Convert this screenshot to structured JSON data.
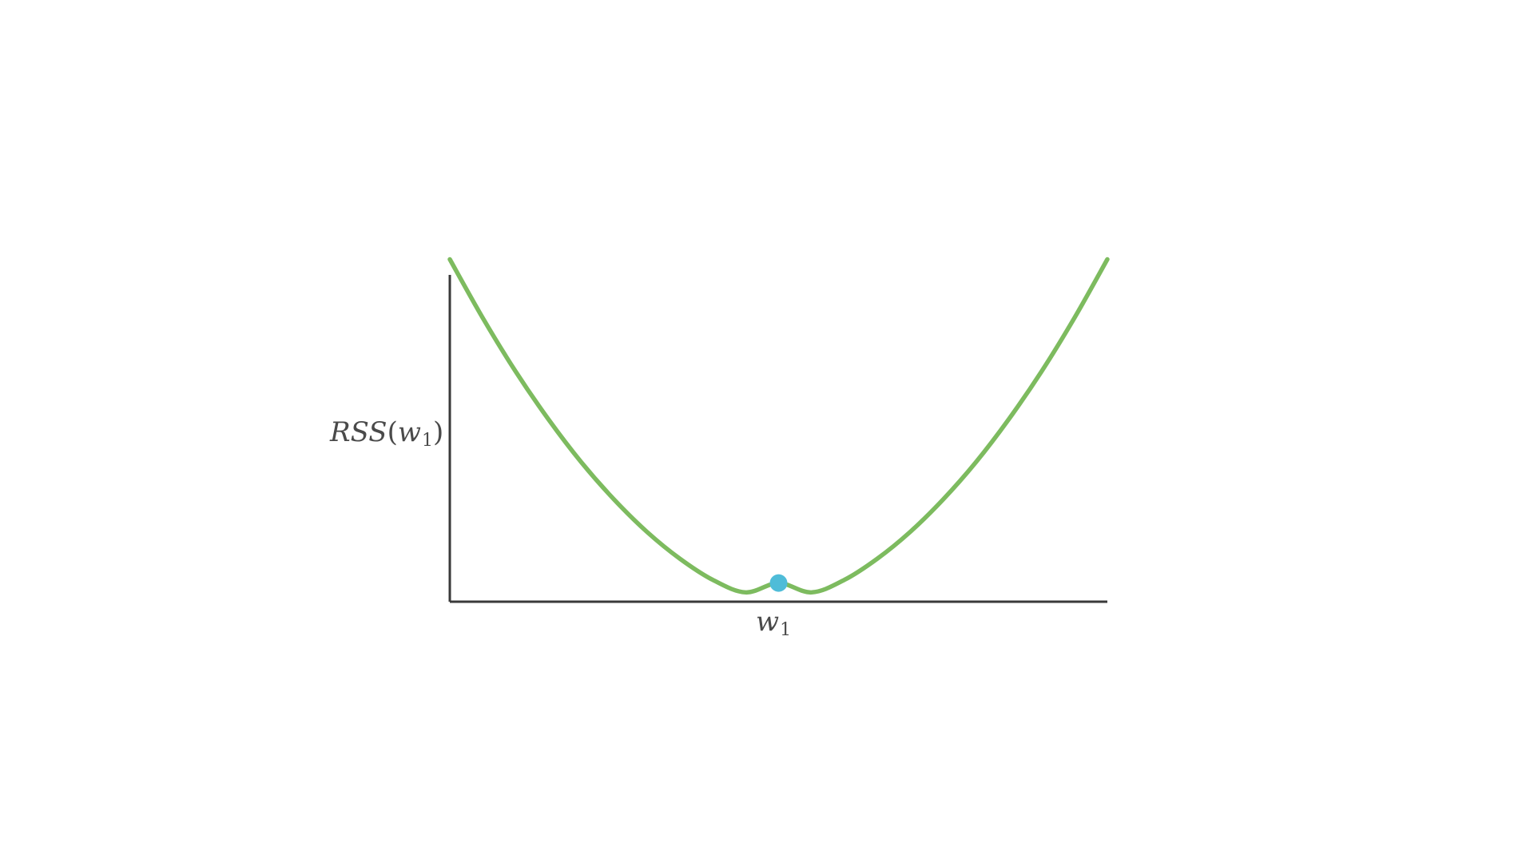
{
  "chart_data": {
    "type": "line",
    "title": "",
    "xlabel": {
      "var": "w",
      "sub": "1"
    },
    "ylabel": {
      "func": "RSS",
      "var": "w",
      "sub": "1"
    },
    "xlim": [
      -1,
      1
    ],
    "ylim": [
      0,
      1.05
    ],
    "grid": false,
    "legend": "none",
    "series": [
      {
        "color": "#7dbb5f",
        "points": [
          [
            -1.0,
            1.1
          ],
          [
            -0.9,
            0.912
          ],
          [
            -0.8,
            0.74
          ],
          [
            -0.7,
            0.586
          ],
          [
            -0.6,
            0.448
          ],
          [
            -0.5,
            0.328
          ],
          [
            -0.4,
            0.224
          ],
          [
            -0.3,
            0.138
          ],
          [
            -0.2,
            0.07
          ],
          [
            -0.1,
            0.03
          ],
          [
            0.0,
            0.06
          ],
          [
            0.1,
            0.03
          ],
          [
            0.2,
            0.07
          ],
          [
            0.3,
            0.138
          ],
          [
            0.4,
            0.224
          ],
          [
            0.5,
            0.328
          ],
          [
            0.6,
            0.448
          ],
          [
            0.7,
            0.586
          ],
          [
            0.8,
            0.74
          ],
          [
            0.9,
            0.912
          ],
          [
            1.0,
            1.1
          ]
        ]
      }
    ],
    "marker": {
      "x": 0.0,
      "y": 0.06,
      "color": "#4fbcd8"
    },
    "axis_color": "#3a3a3a"
  }
}
